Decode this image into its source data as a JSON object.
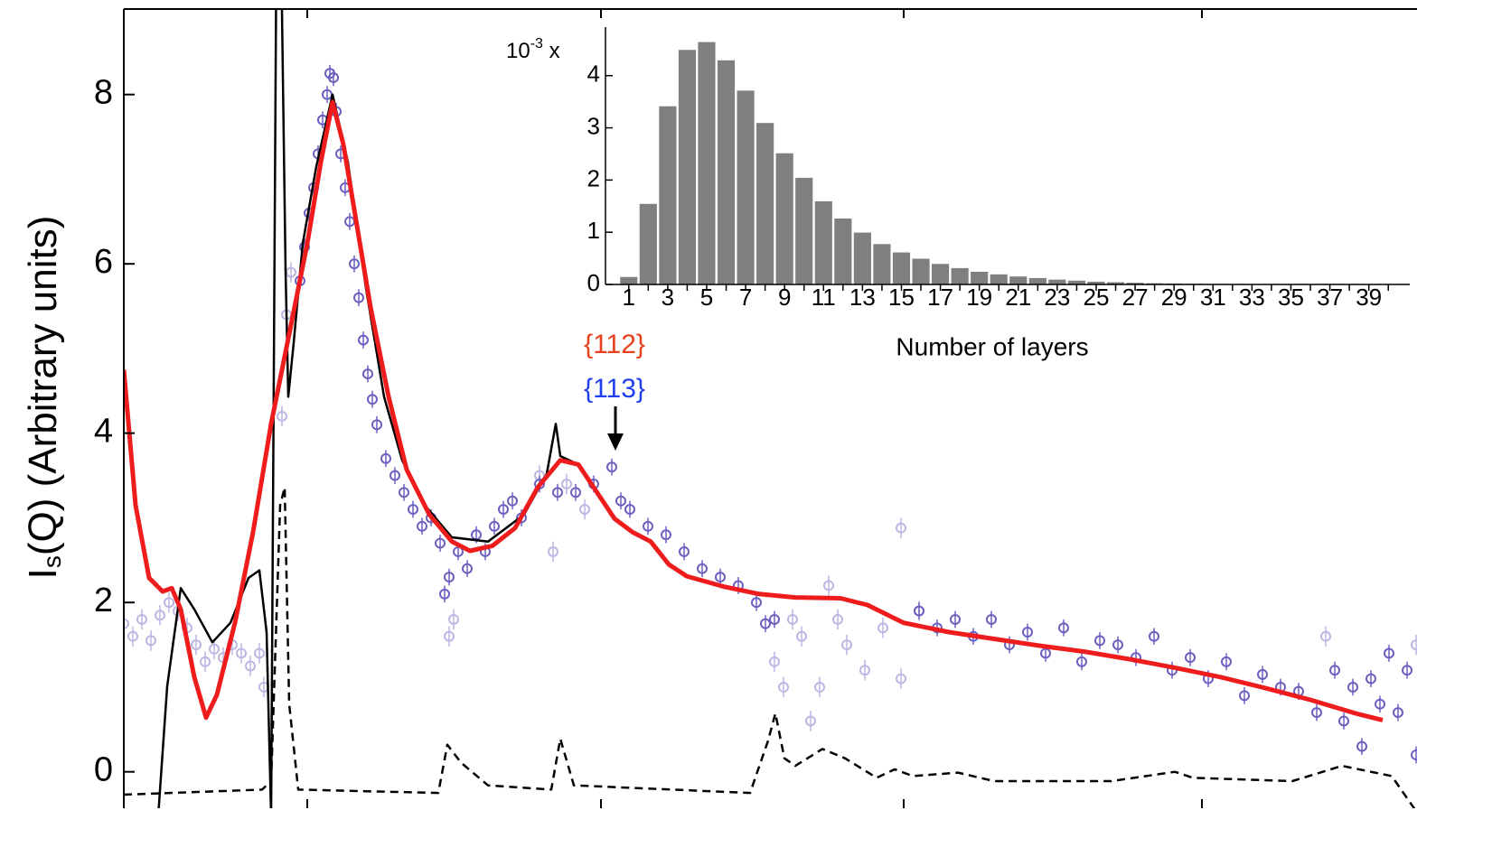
{
  "chart_data": [
    {
      "type": "scatter",
      "y_label": {
        "main": "I",
        "sub": "s",
        "rest": "(Q)  (Arbitrary units)"
      },
      "xlim": [
        0,
        14.31
      ],
      "xticks": [
        2.03,
        5.28,
        8.63,
        11.93
      ],
      "ylim": [
        -0.43,
        9.01
      ],
      "yticks": [
        0,
        2,
        4,
        6,
        8
      ],
      "annotations": [
        {
          "text": "{112}",
          "color": "#e8401c"
        },
        {
          "text": "{113}",
          "color": "#1f3ff0"
        }
      ],
      "arrow_x": 5.44,
      "series": [
        {
          "style": "points",
          "color": "#bcb6e2",
          "yerr": 0.12,
          "x": [
            0.0,
            0.1,
            0.2,
            0.3,
            0.4,
            0.5,
            0.6,
            0.7,
            0.8,
            0.9,
            1.0,
            1.1,
            1.2,
            1.3,
            1.4,
            1.5,
            1.55,
            1.75,
            1.8,
            1.85,
            3.6,
            3.65,
            4.6,
            4.75,
            4.9,
            5.1,
            7.2,
            7.3,
            7.4,
            7.5,
            7.6,
            7.7,
            7.8,
            7.9,
            8.0,
            8.2,
            8.4,
            8.6,
            8.8,
            8.6,
            13.3,
            14.3
          ],
          "y": [
            1.75,
            1.6,
            1.8,
            1.55,
            1.85,
            2.0,
            1.9,
            1.7,
            1.5,
            1.3,
            1.45,
            1.35,
            1.5,
            1.4,
            1.25,
            1.4,
            1.0,
            4.2,
            5.4,
            5.9,
            1.6,
            1.8,
            3.5,
            2.6,
            3.4,
            3.1,
            1.3,
            1.0,
            1.8,
            1.6,
            0.6,
            1.0,
            2.2,
            1.8,
            1.5,
            1.2,
            1.7,
            1.1,
            1.9,
            2.88,
            1.6,
            1.5
          ]
        },
        {
          "style": "points",
          "color": "#6b60c0",
          "yerr": 0.1,
          "x": [
            1.95,
            2.0,
            2.05,
            2.1,
            2.15,
            2.2,
            2.25,
            2.28,
            2.32,
            2.35,
            2.4,
            2.45,
            2.5,
            2.55,
            2.6,
            2.65,
            2.7,
            2.75,
            2.8,
            2.9,
            3.0,
            3.1,
            3.2,
            3.3,
            3.4,
            3.5,
            3.55,
            3.6,
            3.7,
            3.8,
            3.9,
            4.0,
            4.1,
            4.2,
            4.3,
            4.4,
            4.6,
            4.8,
            5.0,
            5.2,
            5.4,
            5.5,
            5.6,
            5.8,
            6.0,
            6.2,
            6.4,
            6.6,
            6.8,
            7.0,
            7.1,
            7.2,
            8.8,
            9.0,
            9.2,
            9.4,
            9.6,
            9.8,
            10.0,
            10.2,
            10.4,
            10.6,
            10.8,
            11.0,
            11.2,
            11.4,
            11.6,
            11.8,
            12.0,
            12.2,
            12.4,
            12.6,
            12.8,
            13.0,
            13.2,
            13.4,
            13.5,
            13.6,
            13.7,
            13.8,
            13.9,
            14.0,
            14.1,
            14.2,
            14.3
          ],
          "y": [
            5.8,
            6.2,
            6.6,
            6.9,
            7.3,
            7.7,
            8.0,
            8.25,
            8.2,
            7.8,
            7.3,
            6.9,
            6.5,
            6.0,
            5.6,
            5.1,
            4.7,
            4.4,
            4.1,
            3.7,
            3.5,
            3.3,
            3.1,
            2.9,
            3.0,
            2.7,
            2.1,
            2.3,
            2.6,
            2.4,
            2.8,
            2.6,
            2.9,
            3.1,
            3.2,
            3.0,
            3.4,
            3.3,
            3.3,
            3.4,
            3.6,
            3.2,
            3.1,
            2.9,
            2.8,
            2.6,
            2.4,
            2.3,
            2.2,
            2.0,
            1.75,
            1.8,
            1.9,
            1.7,
            1.8,
            1.6,
            1.8,
            1.5,
            1.65,
            1.4,
            1.7,
            1.3,
            1.55,
            1.5,
            1.35,
            1.6,
            1.2,
            1.35,
            1.1,
            1.3,
            0.9,
            1.15,
            1.0,
            0.95,
            0.7,
            1.2,
            0.6,
            1.0,
            0.3,
            1.1,
            0.8,
            1.4,
            0.7,
            1.2,
            0.2
          ]
        },
        {
          "style": "dashed",
          "color": "#000000",
          "width": 2.5,
          "x": [
            0,
            1.53,
            1.63,
            1.73,
            1.78,
            1.83,
            1.93,
            3.48,
            3.58,
            3.73,
            4.03,
            4.73,
            4.83,
            4.98,
            6.93,
            7.13,
            7.21,
            7.31,
            7.43,
            7.73,
            7.98,
            8.33,
            8.53,
            8.73,
            9.23,
            9.63,
            10.93,
            11.63,
            11.83,
            12.93,
            13.48,
            14.03,
            14.31
          ],
          "y": [
            -0.27,
            -0.21,
            -0.11,
            3.15,
            3.36,
            0.8,
            -0.21,
            -0.25,
            0.32,
            0.11,
            -0.16,
            -0.21,
            0.39,
            -0.16,
            -0.25,
            0.37,
            0.69,
            0.16,
            0.07,
            0.27,
            0.16,
            -0.07,
            0.03,
            -0.05,
            -0.01,
            -0.11,
            -0.11,
            0,
            -0.07,
            -0.11,
            0.07,
            -0.05,
            -0.48
          ]
        },
        {
          "style": "solid",
          "color": "#000000",
          "width": 2.5,
          "x": [
            0.38,
            0.48,
            0.63,
            0.78,
            0.98,
            1.18,
            1.38,
            1.5,
            1.58,
            1.63,
            1.69,
            1.75,
            1.79,
            1.82,
            1.88,
            1.98,
            2.13,
            2.31,
            2.48,
            2.68,
            2.88,
            3.08,
            3.33,
            3.63,
            4.03,
            4.43,
            4.68,
            4.78,
            4.83,
            5.03
          ],
          "y": [
            -0.53,
            1.01,
            2.17,
            1.92,
            1.53,
            1.76,
            2.29,
            2.38,
            1.65,
            -0.53,
            10,
            9.0,
            5.92,
            4.43,
            5.07,
            6.24,
            7.15,
            8.0,
            7.2,
            5.71,
            4.43,
            3.68,
            3.15,
            2.77,
            2.72,
            3.04,
            3.52,
            4.11,
            3.73,
            3.63
          ]
        },
        {
          "style": "solid",
          "color": "#ee1c1c",
          "width": 5,
          "x": [
            0,
            0.13,
            0.28,
            0.43,
            0.53,
            0.63,
            0.78,
            0.91,
            1.03,
            1.23,
            1.43,
            1.63,
            1.83,
            2.03,
            2.18,
            2.31,
            2.43,
            2.58,
            2.73,
            2.93,
            3.13,
            3.38,
            3.63,
            3.83,
            4.08,
            4.33,
            4.58,
            4.83,
            5.03,
            5.23,
            5.43,
            5.63,
            5.83,
            6.03,
            6.23,
            6.63,
            7.03,
            7.43,
            7.93,
            8.23,
            8.63,
            9.13,
            9.63,
            10.13,
            10.63,
            11.13,
            11.63,
            12.13,
            12.63,
            13.13,
            13.63,
            13.93
          ],
          "y": [
            4.75,
            3.15,
            2.29,
            2.13,
            2.17,
            1.92,
            1.12,
            0.64,
            0.91,
            1.76,
            2.83,
            4.11,
            5.17,
            6.24,
            7.2,
            7.91,
            7.41,
            6.45,
            5.49,
            4.43,
            3.57,
            3.04,
            2.72,
            2.61,
            2.67,
            2.88,
            3.36,
            3.68,
            3.63,
            3.31,
            2.99,
            2.83,
            2.72,
            2.45,
            2.31,
            2.19,
            2.1,
            2.06,
            2.05,
            1.97,
            1.76,
            1.65,
            1.57,
            1.49,
            1.42,
            1.33,
            1.23,
            1.12,
            0.99,
            0.85,
            0.69,
            0.61
          ]
        }
      ]
    },
    {
      "type": "bar",
      "color": "#7f7f7f",
      "x_label": "Number of layers",
      "y_multiplier": {
        "base": "10",
        "exp": "-3",
        "suffix": " x"
      },
      "categories": [
        "1",
        null,
        "3",
        null,
        "5",
        null,
        "7",
        null,
        "9",
        null,
        "11",
        null,
        "13",
        null,
        "15",
        null,
        "17",
        null,
        "19",
        null,
        "21",
        null,
        "23",
        null,
        "25",
        null,
        "27",
        null,
        "29",
        null,
        "31",
        null,
        "33",
        null,
        "35",
        null,
        "37",
        null,
        "39",
        null
      ],
      "values": [
        0.15,
        1.55,
        3.42,
        4.5,
        4.65,
        4.3,
        3.72,
        3.1,
        2.52,
        2.05,
        1.6,
        1.27,
        1.0,
        0.78,
        0.62,
        0.5,
        0.4,
        0.32,
        0.25,
        0.2,
        0.16,
        0.13,
        0.1,
        0.08,
        0.06,
        0.05,
        0.04,
        0.03,
        0.025,
        0.02,
        0.015,
        0.012,
        0.01,
        0.008,
        0.006,
        0.005,
        0.004,
        0.003,
        0.002,
        0.001
      ],
      "ylim": [
        0,
        4.93
      ],
      "yticks": [
        0,
        1,
        2,
        3,
        4
      ]
    }
  ]
}
